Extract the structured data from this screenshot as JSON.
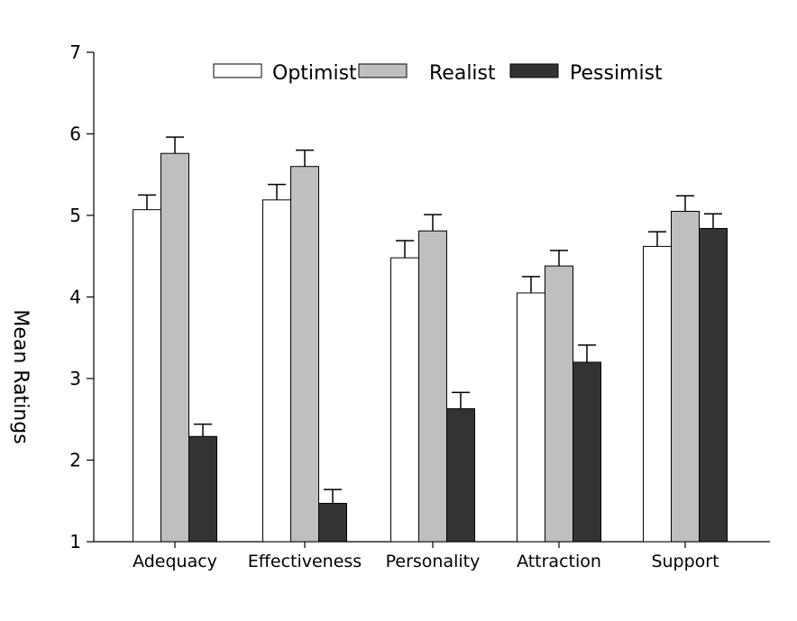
{
  "chart_data": {
    "type": "bar",
    "ylabel": "Mean Ratings",
    "xlabel": "",
    "ylim": [
      1,
      7
    ],
    "yticks": [
      1,
      2,
      3,
      4,
      5,
      6,
      7
    ],
    "grid": false,
    "legend_position": "top",
    "error_bars": true,
    "categories": [
      "Adequacy",
      "Effectiveness",
      "Personality",
      "Attraction",
      "Support"
    ],
    "series": [
      {
        "name": "Optimist",
        "color": "#ffffff",
        "values": [
          5.07,
          5.19,
          4.48,
          4.05,
          4.62
        ],
        "errors": [
          0.18,
          0.19,
          0.21,
          0.2,
          0.18
        ]
      },
      {
        "name": "Realist",
        "color": "#bfbfbf",
        "values": [
          5.76,
          5.6,
          4.81,
          4.38,
          5.05
        ],
        "errors": [
          0.2,
          0.2,
          0.2,
          0.19,
          0.19
        ]
      },
      {
        "name": "Pessimist",
        "color": "#333333",
        "values": [
          2.29,
          1.47,
          2.63,
          3.2,
          4.84
        ],
        "errors": [
          0.15,
          0.17,
          0.2,
          0.21,
          0.18
        ]
      }
    ]
  }
}
